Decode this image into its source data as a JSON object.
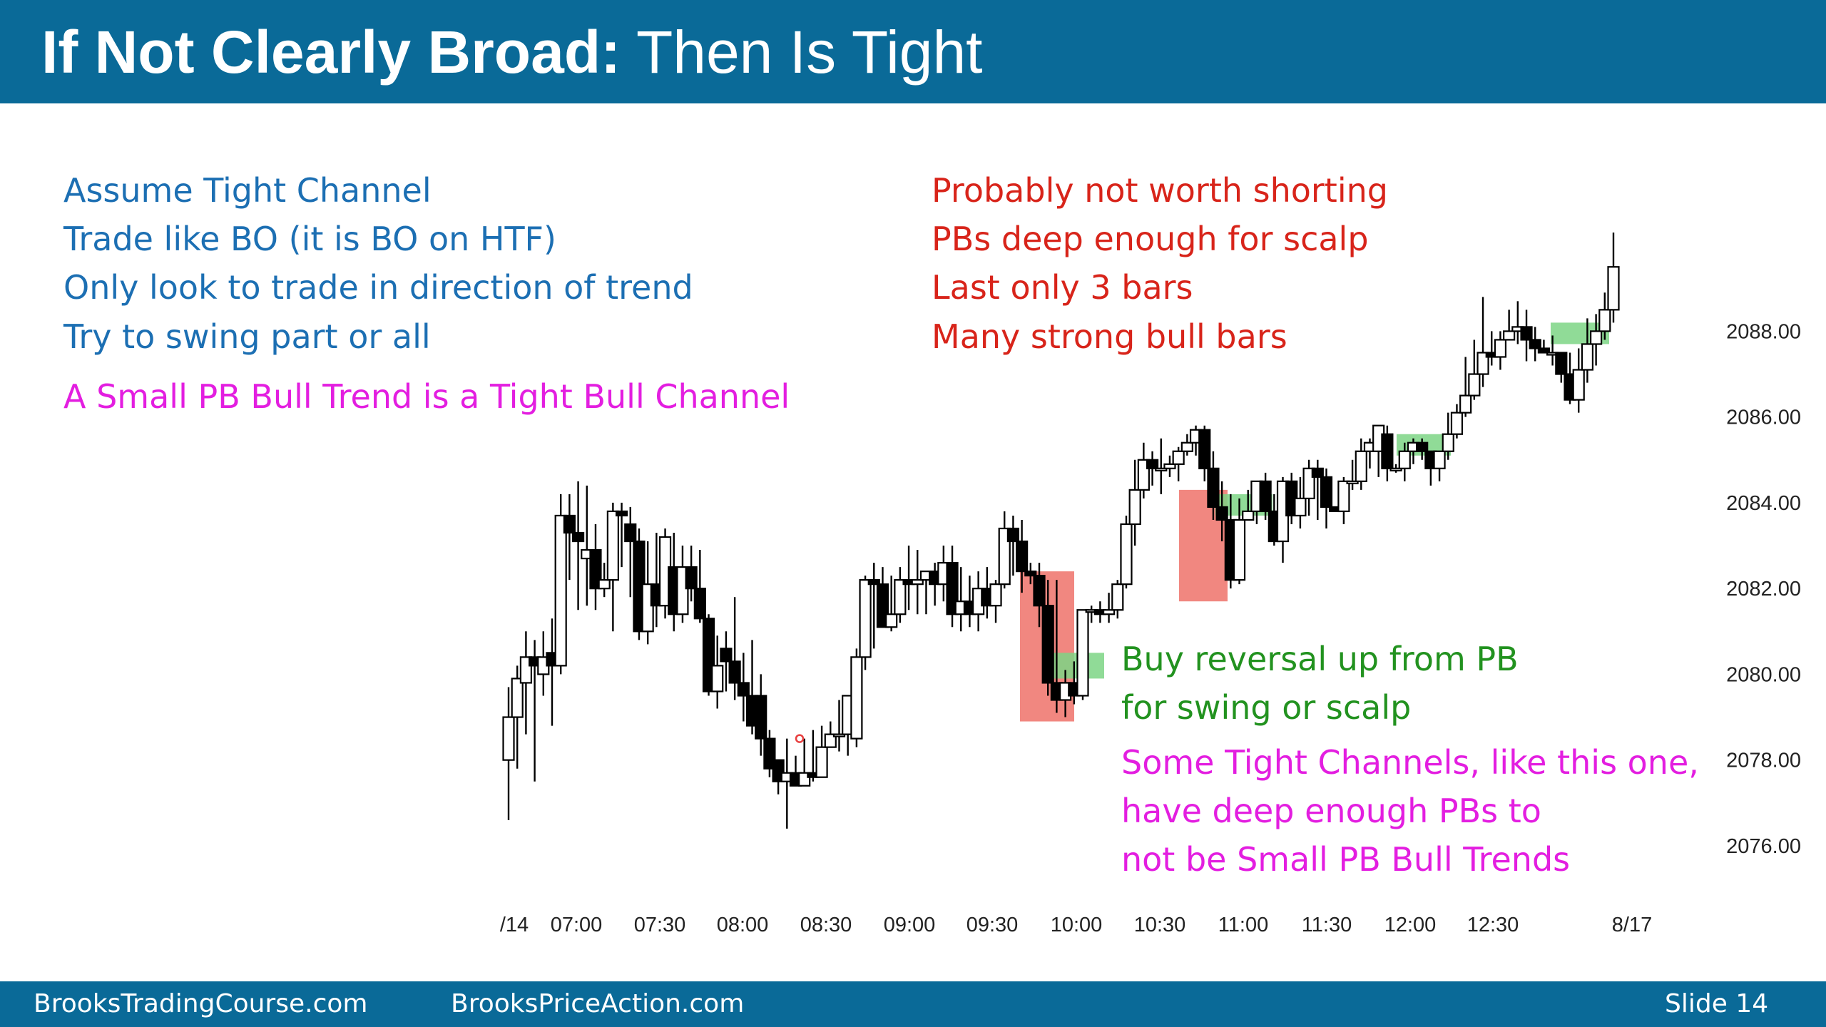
{
  "header": {
    "title_bold": "If Not Clearly Broad:",
    "title_rest": "Then Is Tight"
  },
  "footer": {
    "left": "BrooksTradingCourse.com",
    "middle": "BrooksPriceAction.com",
    "slide": "Slide  14"
  },
  "notes": {
    "left": [
      "Assume Tight Channel",
      "Trade like BO (it is BO on HTF)",
      "Only look to trade in direction of trend",
      "Try to swing part or all"
    ],
    "left_magenta": "A Small PB Bull Trend is a Tight Bull Channel",
    "right": [
      "Probably not worth shorting",
      "PBs deep enough for scalp",
      "Last only 3 bars",
      "Many strong bull bars"
    ],
    "buy": [
      "Buy reversal up from PB",
      "for swing or scalp"
    ],
    "bottom_magenta": [
      "Some Tight Channels, like this one,",
      "have deep enough PBs to",
      "not be Small PB Bull Trends"
    ]
  },
  "colors": {
    "header_bg": "#0a6a98",
    "blue_text": "#1c6fb3",
    "red_text": "#d8241a",
    "magenta_text": "#e31ee0",
    "green_text": "#22921f",
    "red_box": "#f07a72",
    "green_box": "#7dd585"
  },
  "chart_data": {
    "type": "candlestick",
    "title": "",
    "ylim": [
      2075.3,
      2091.3
    ],
    "yticks": [
      "2088.00",
      "2086.00",
      "2084.00",
      "2082.00",
      "2080.00",
      "2078.00",
      "2076.00"
    ],
    "ytick_values": [
      2088,
      2086,
      2084,
      2082,
      2080,
      2078,
      2076
    ],
    "xticks": [
      "/14",
      "07:00",
      "07:30",
      "08:00",
      "08:30",
      "09:00",
      "09:30",
      "10:00",
      "10:30",
      "11:00",
      "11:30",
      "12:00",
      "12:30",
      "8/17"
    ],
    "xtick_bar_index": [
      0,
      7,
      17,
      27,
      37,
      47,
      57,
      67,
      77,
      87,
      97,
      107,
      117,
      135
    ],
    "bars": [
      [
        2078,
        2079,
        2076.6,
        2079.7
      ],
      [
        2079,
        2079.9,
        2077.8,
        2080.2
      ],
      [
        2079.8,
        2080.4,
        2078.6,
        2081
      ],
      [
        2080.4,
        2080.2,
        2077.5,
        2080.8
      ],
      [
        2080,
        2080.4,
        2079.5,
        2081
      ],
      [
        2080.5,
        2080.2,
        2078.8,
        2081.3
      ],
      [
        2080.2,
        2083.7,
        2080,
        2084.2
      ],
      [
        2083.7,
        2083.3,
        2082.2,
        2084.2
      ],
      [
        2083.3,
        2083.1,
        2081.5,
        2084.5
      ],
      [
        2082.7,
        2082.9,
        2081.6,
        2084.4
      ],
      [
        2082.9,
        2082,
        2081.5,
        2083.5
      ],
      [
        2082,
        2082.2,
        2081.8,
        2082.6
      ],
      [
        2082.2,
        2083.8,
        2081,
        2084
      ],
      [
        2083.8,
        2083.7,
        2082.5,
        2084
      ],
      [
        2083.5,
        2083.1,
        2081.8,
        2083.9
      ],
      [
        2083.1,
        2081,
        2080.8,
        2083.4
      ],
      [
        2081,
        2082.1,
        2080.7,
        2083.1
      ],
      [
        2082.1,
        2081.6,
        2081.1,
        2083.3
      ],
      [
        2081.6,
        2083.2,
        2081.3,
        2083.4
      ],
      [
        2082.5,
        2081.4,
        2081,
        2083.3
      ],
      [
        2081.4,
        2082.5,
        2081.2,
        2083
      ],
      [
        2082.5,
        2082,
        2081.7,
        2083
      ],
      [
        2082,
        2081.3,
        2081.2,
        2082.9
      ],
      [
        2081.3,
        2079.6,
        2079.5,
        2081.4
      ],
      [
        2079.6,
        2080.2,
        2079.2,
        2080.9
      ],
      [
        2080.6,
        2080.3,
        2079.6,
        2081
      ],
      [
        2080.3,
        2079.8,
        2079.4,
        2081.8
      ],
      [
        2079.8,
        2079.5,
        2078.9,
        2080.5
      ],
      [
        2079.5,
        2078.8,
        2078.6,
        2080.8
      ],
      [
        2079.5,
        2078.5,
        2078.1,
        2080
      ],
      [
        2078.5,
        2077.8,
        2077.6,
        2078.7
      ],
      [
        2078,
        2077.5,
        2077.2,
        2078
      ],
      [
        2077.5,
        2077.7,
        2076.4,
        2078.5
      ],
      [
        2077.7,
        2077.4,
        2077.4,
        2078.1
      ],
      [
        2077.4,
        2077.7,
        2077.4,
        2078.5
      ],
      [
        2077.7,
        2077.6,
        2077.5,
        2078.7
      ],
      [
        2077.6,
        2078.3,
        2077.6,
        2078.8
      ],
      [
        2078.3,
        2078.6,
        2078.4,
        2078.9
      ],
      [
        2078.6,
        2078.6,
        2078.2,
        2079.4
      ],
      [
        2078.6,
        2079.5,
        2078.1,
        2079.2
      ],
      [
        2078.5,
        2080.4,
        2078.3,
        2080.6
      ],
      [
        2080.4,
        2082.2,
        2080.1,
        2082.3
      ],
      [
        2082.2,
        2082.1,
        2080.6,
        2082.6
      ],
      [
        2082.1,
        2081.1,
        2081.1,
        2082.5
      ],
      [
        2081.1,
        2081.4,
        2081,
        2082.3
      ],
      [
        2081.4,
        2082.2,
        2081.2,
        2082.5
      ],
      [
        2082.2,
        2082.1,
        2081.5,
        2083
      ],
      [
        2082.1,
        2082.2,
        2081.4,
        2082.9
      ],
      [
        2082.2,
        2082.4,
        2081.4,
        2082.4
      ],
      [
        2082.4,
        2082.1,
        2081.6,
        2082.6
      ],
      [
        2082.1,
        2082.6,
        2081.7,
        2083
      ],
      [
        2082.6,
        2081.4,
        2081.1,
        2083
      ],
      [
        2081.4,
        2081.7,
        2081,
        2082.5
      ],
      [
        2081.7,
        2081.4,
        2081.1,
        2082.3
      ],
      [
        2081.4,
        2082,
        2081,
        2082.4
      ],
      [
        2082,
        2081.6,
        2081.3,
        2082.5
      ],
      [
        2081.6,
        2082.1,
        2081.2,
        2082.2
      ],
      [
        2082.1,
        2083.4,
        2082,
        2083.8
      ],
      [
        2083.4,
        2083.1,
        2082.3,
        2083.7
      ],
      [
        2083.1,
        2082.4,
        2081.9,
        2083.6
      ],
      [
        2082.4,
        2082.3,
        2082.1,
        2082.6
      ],
      [
        2082.3,
        2081.6,
        2081.1,
        2082.6
      ],
      [
        2081.6,
        2079.8,
        2079.5,
        2082.2
      ],
      [
        2079.8,
        2079.4,
        2079.1,
        2082.2
      ],
      [
        2079.4,
        2079.8,
        2079,
        2080.1
      ],
      [
        2079.8,
        2079.5,
        2079.3,
        2080.3
      ],
      [
        2079.5,
        2081.5,
        2079.4,
        2081.5
      ],
      [
        2081.5,
        2081.5,
        2081.2,
        2081.6
      ],
      [
        2081.5,
        2081.4,
        2081.2,
        2081.7
      ],
      [
        2081.4,
        2081.5,
        2081.2,
        2081.9
      ],
      [
        2081.5,
        2082.1,
        2081.3,
        2082.2
      ],
      [
        2082.1,
        2083.5,
        2082,
        2083.7
      ],
      [
        2083.5,
        2084.3,
        2083,
        2085
      ],
      [
        2084.3,
        2085,
        2084.1,
        2085.4
      ],
      [
        2085,
        2084.8,
        2084.4,
        2085.2
      ],
      [
        2084.8,
        2084.8,
        2084.2,
        2085.5
      ],
      [
        2084.8,
        2084.9,
        2084.6,
        2085.1
      ],
      [
        2084.9,
        2085.2,
        2084.5,
        2085.3
      ],
      [
        2085.2,
        2085.4,
        2085.1,
        2085.6
      ],
      [
        2085.4,
        2085.7,
        2085.1,
        2085.8
      ],
      [
        2085.7,
        2084.8,
        2084.5,
        2085.8
      ],
      [
        2084.8,
        2083.9,
        2083.6,
        2085.2
      ],
      [
        2083.9,
        2083.6,
        2083.1,
        2084.5
      ],
      [
        2083.6,
        2082.2,
        2082,
        2084.2
      ],
      [
        2082.2,
        2083.6,
        2082.1,
        2084.1
      ],
      [
        2083.6,
        2083.8,
        2083.6,
        2084.3
      ],
      [
        2083.8,
        2084.5,
        2083.5,
        2084.4
      ],
      [
        2084.5,
        2083.8,
        2083.6,
        2084.7
      ],
      [
        2083.8,
        2083.1,
        2083,
        2084.2
      ],
      [
        2083.1,
        2084.5,
        2082.6,
        2084.6
      ],
      [
        2084.5,
        2083.7,
        2083.5,
        2084.7
      ],
      [
        2083.7,
        2084.1,
        2083.4,
        2084.6
      ],
      [
        2084.1,
        2084.8,
        2083.7,
        2085
      ],
      [
        2084.8,
        2084.6,
        2083.6,
        2085
      ],
      [
        2084.6,
        2083.9,
        2083.4,
        2084.8
      ],
      [
        2083.9,
        2083.8,
        2083.8,
        2083.9
      ],
      [
        2083.8,
        2084.5,
        2083.5,
        2084.6
      ],
      [
        2084.5,
        2084.5,
        2084.3,
        2085
      ],
      [
        2084.5,
        2085.2,
        2084.3,
        2085.5
      ],
      [
        2085.2,
        2085.4,
        2084.8,
        2085.5
      ],
      [
        2085.2,
        2085.8,
        2084.6,
        2085.7
      ],
      [
        2085.6,
        2084.8,
        2084.5,
        2085.8
      ],
      [
        2084.8,
        2084.8,
        2084.7,
        2084.9
      ],
      [
        2084.8,
        2085.2,
        2084.5,
        2085.4
      ],
      [
        2085.2,
        2085.4,
        2084.9,
        2085.5
      ],
      [
        2085.4,
        2085.2,
        2085,
        2085.5
      ],
      [
        2085.2,
        2084.8,
        2084.4,
        2085
      ],
      [
        2084.8,
        2085.2,
        2084.5,
        2085.1
      ],
      [
        2085.2,
        2085.6,
        2085,
        2086.1
      ],
      [
        2085.6,
        2086.1,
        2085.5,
        2086.3
      ],
      [
        2086.1,
        2086.5,
        2086,
        2087.4
      ],
      [
        2086.5,
        2087,
        2086.4,
        2087.8
      ],
      [
        2087,
        2087.5,
        2086.7,
        2088.8
      ],
      [
        2087.5,
        2087.4,
        2087.2,
        2088
      ],
      [
        2087.4,
        2087.8,
        2087.1,
        2088
      ],
      [
        2087.8,
        2088,
        2087.8,
        2088.5
      ],
      [
        2088,
        2088.1,
        2087.7,
        2088.7
      ],
      [
        2088.1,
        2087.8,
        2087.3,
        2088.5
      ],
      [
        2087.8,
        2087.6,
        2087.3,
        2088.1
      ],
      [
        2087.6,
        2087.5,
        2087.5,
        2087.8
      ],
      [
        2087.5,
        2087.5,
        2087.2,
        2087.9
      ],
      [
        2087.5,
        2087,
        2086.8,
        2087.4
      ],
      [
        2087,
        2086.4,
        2086.3,
        2087.5
      ],
      [
        2086.4,
        2087.1,
        2086.1,
        2087.6
      ],
      [
        2087.1,
        2087.7,
        2086.8,
        2088.3
      ],
      [
        2087.7,
        2088,
        2087.2,
        2088.4
      ],
      [
        2088,
        2088.5,
        2087.8,
        2088.9
      ],
      [
        2088.5,
        2089.5,
        2088.2,
        2090.3
      ]
    ]
  }
}
